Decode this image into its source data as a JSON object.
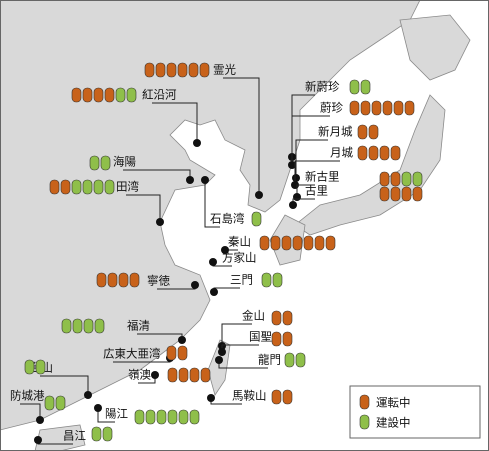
{
  "legend": {
    "operating": "運転中",
    "construction": "建設中"
  },
  "sites": [
    {
      "name": "霊光",
      "operating": 6,
      "construction": 0
    },
    {
      "name": "紅沿河",
      "operating": 4,
      "construction": 2
    },
    {
      "name": "新蔚珍",
      "operating": 0,
      "construction": 2
    },
    {
      "name": "蔚珍",
      "operating": 6,
      "construction": 0
    },
    {
      "name": "新月城",
      "operating": 2,
      "construction": 0
    },
    {
      "name": "月城",
      "operating": 4,
      "construction": 0
    },
    {
      "name": "新古里",
      "operating": 2,
      "construction": 2
    },
    {
      "name": "古里",
      "operating": 4,
      "construction": 0
    },
    {
      "name": "海陽",
      "operating": 0,
      "construction": 2
    },
    {
      "name": "田湾",
      "operating": 2,
      "construction": 4
    },
    {
      "name": "石島湾",
      "operating": 0,
      "construction": 1
    },
    {
      "name": "秦山",
      "operating": 7,
      "construction": 0
    },
    {
      "name": "方家山",
      "operating": 0,
      "construction": 0
    },
    {
      "name": "三門",
      "operating": 0,
      "construction": 2
    },
    {
      "name": "寧徳",
      "operating": 4,
      "construction": 0
    },
    {
      "name": "福清",
      "operating": 0,
      "construction": 4
    },
    {
      "name": "金山",
      "operating": 2,
      "construction": 0
    },
    {
      "name": "国聖",
      "operating": 2,
      "construction": 0
    },
    {
      "name": "龍門",
      "operating": 0,
      "construction": 2
    },
    {
      "name": "馬鞍山",
      "operating": 2,
      "construction": 0
    },
    {
      "name": "広東大亜湾",
      "operating": 2,
      "construction": 0
    },
    {
      "name": "嶺澳",
      "operating": 4,
      "construction": 0
    },
    {
      "name": "台山",
      "operating": 0,
      "construction": 2
    },
    {
      "name": "陽江",
      "operating": 0,
      "construction": 6
    },
    {
      "name": "防城港",
      "operating": 0,
      "construction": 2
    },
    {
      "name": "昌江",
      "operating": 0,
      "construction": 2
    }
  ]
}
